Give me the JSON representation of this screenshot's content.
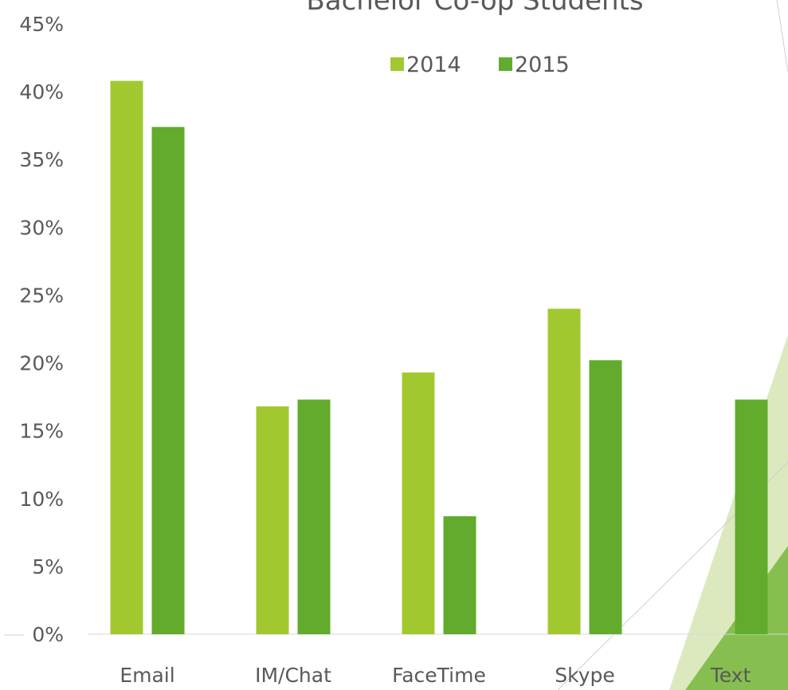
{
  "chart_data": {
    "type": "bar",
    "title": "Bachelor Co-op Students",
    "categories": [
      "Email",
      "IM/Chat",
      "FaceTime",
      "Skype",
      "Text"
    ],
    "series": [
      {
        "name": "2014",
        "color": "#a2c830",
        "values": [
          40.8,
          16.8,
          19.3,
          24.0,
          null
        ]
      },
      {
        "name": "2015",
        "color": "#62ab2c",
        "values": [
          37.4,
          17.3,
          8.7,
          20.2,
          17.3
        ]
      }
    ],
    "ylim": [
      0,
      45
    ],
    "yticks": [
      {
        "value": 0,
        "label": "0%"
      },
      {
        "value": 5,
        "label": "5%"
      },
      {
        "value": 10,
        "label": "10%"
      },
      {
        "value": 15,
        "label": "15%"
      },
      {
        "value": 20,
        "label": "20%"
      },
      {
        "value": 25,
        "label": "25%"
      },
      {
        "value": 30,
        "label": "30%"
      },
      {
        "value": 35,
        "label": "35%"
      },
      {
        "value": 40,
        "label": "40%"
      },
      {
        "value": 45,
        "label": "45%"
      }
    ],
    "legend": "top"
  }
}
